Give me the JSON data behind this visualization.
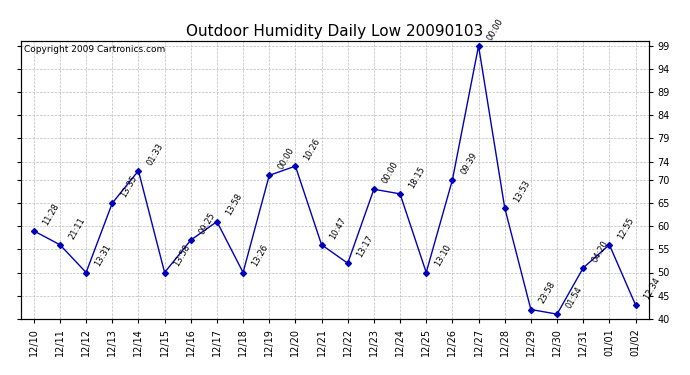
{
  "title": "Outdoor Humidity Daily Low 20090103",
  "copyright": "Copyright 2009 Cartronics.com",
  "x_labels": [
    "12/10",
    "12/11",
    "12/12",
    "12/13",
    "12/14",
    "12/15",
    "12/16",
    "12/17",
    "12/18",
    "12/19",
    "12/20",
    "12/21",
    "12/22",
    "12/23",
    "12/24",
    "12/25",
    "12/26",
    "12/27",
    "12/28",
    "12/29",
    "12/30",
    "12/31",
    "01/01",
    "01/02"
  ],
  "y_values": [
    59,
    56,
    50,
    65,
    72,
    50,
    57,
    61,
    50,
    71,
    73,
    56,
    52,
    68,
    67,
    50,
    70,
    99,
    64,
    42,
    41,
    51,
    56,
    43
  ],
  "point_labels": [
    "11:28",
    "21:11",
    "13:31",
    "13:35",
    "01:33",
    "13:58",
    "09:25",
    "13:58",
    "13:26",
    "00:00",
    "10:26",
    "10:47",
    "13:17",
    "00:00",
    "18:15",
    "13:10",
    "09:39",
    "00:00",
    "13:53",
    "23:58",
    "01:54",
    "04:20",
    "12:55",
    "12:34"
  ],
  "line_color": "#0000bb",
  "marker_color": "#0000bb",
  "bg_color": "#ffffff",
  "grid_color": "#bbbbbb",
  "ylim_min": 40,
  "ylim_max": 100,
  "yticks": [
    40,
    45,
    50,
    55,
    60,
    65,
    70,
    74,
    79,
    84,
    89,
    94,
    99
  ],
  "title_fontsize": 11,
  "tick_fontsize": 7,
  "label_fontsize": 6.0
}
